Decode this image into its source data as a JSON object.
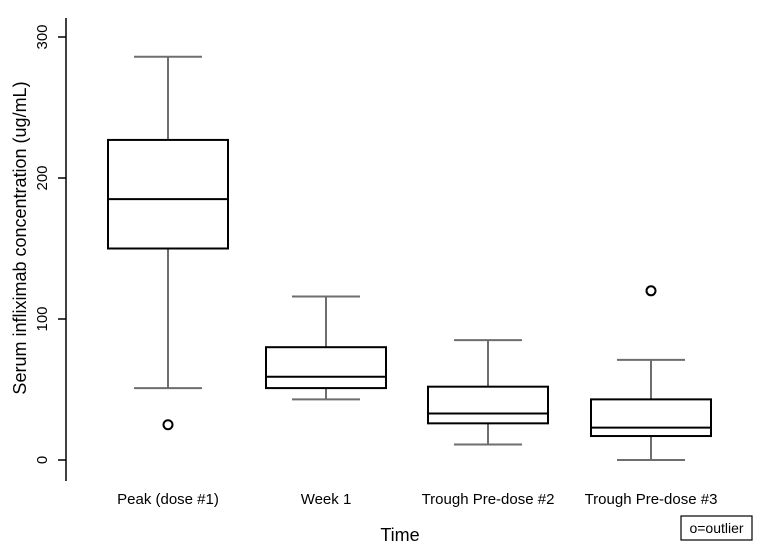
{
  "chart_data": {
    "type": "box",
    "title": "",
    "xlabel": "Time",
    "ylabel": "Serum infliximab concentration (ug/mL)",
    "ylim": [
      0,
      300
    ],
    "yticks": [
      0,
      100,
      200,
      300
    ],
    "categories": [
      "Peak (dose #1)",
      "Week 1",
      "Trough Pre-dose #2",
      "Trough Pre-dose #3"
    ],
    "boxes": [
      {
        "category": "Peak (dose #1)",
        "whisker_low": 51,
        "q1": 150,
        "median": 185,
        "q3": 227,
        "whisker_high": 286,
        "outliers": [
          25
        ]
      },
      {
        "category": "Week 1",
        "whisker_low": 43,
        "q1": 51,
        "median": 59,
        "q3": 80,
        "whisker_high": 116,
        "outliers": []
      },
      {
        "category": "Trough Pre-dose #2",
        "whisker_low": 11,
        "q1": 26,
        "median": 33,
        "q3": 52,
        "whisker_high": 85,
        "outliers": []
      },
      {
        "category": "Trough Pre-dose #3",
        "whisker_low": 0,
        "q1": 17,
        "median": 23,
        "q3": 43,
        "whisker_high": 71,
        "outliers": [
          120
        ]
      }
    ],
    "legend": {
      "text": "o=outlier",
      "placement": "bottom-right"
    },
    "grid": false
  }
}
